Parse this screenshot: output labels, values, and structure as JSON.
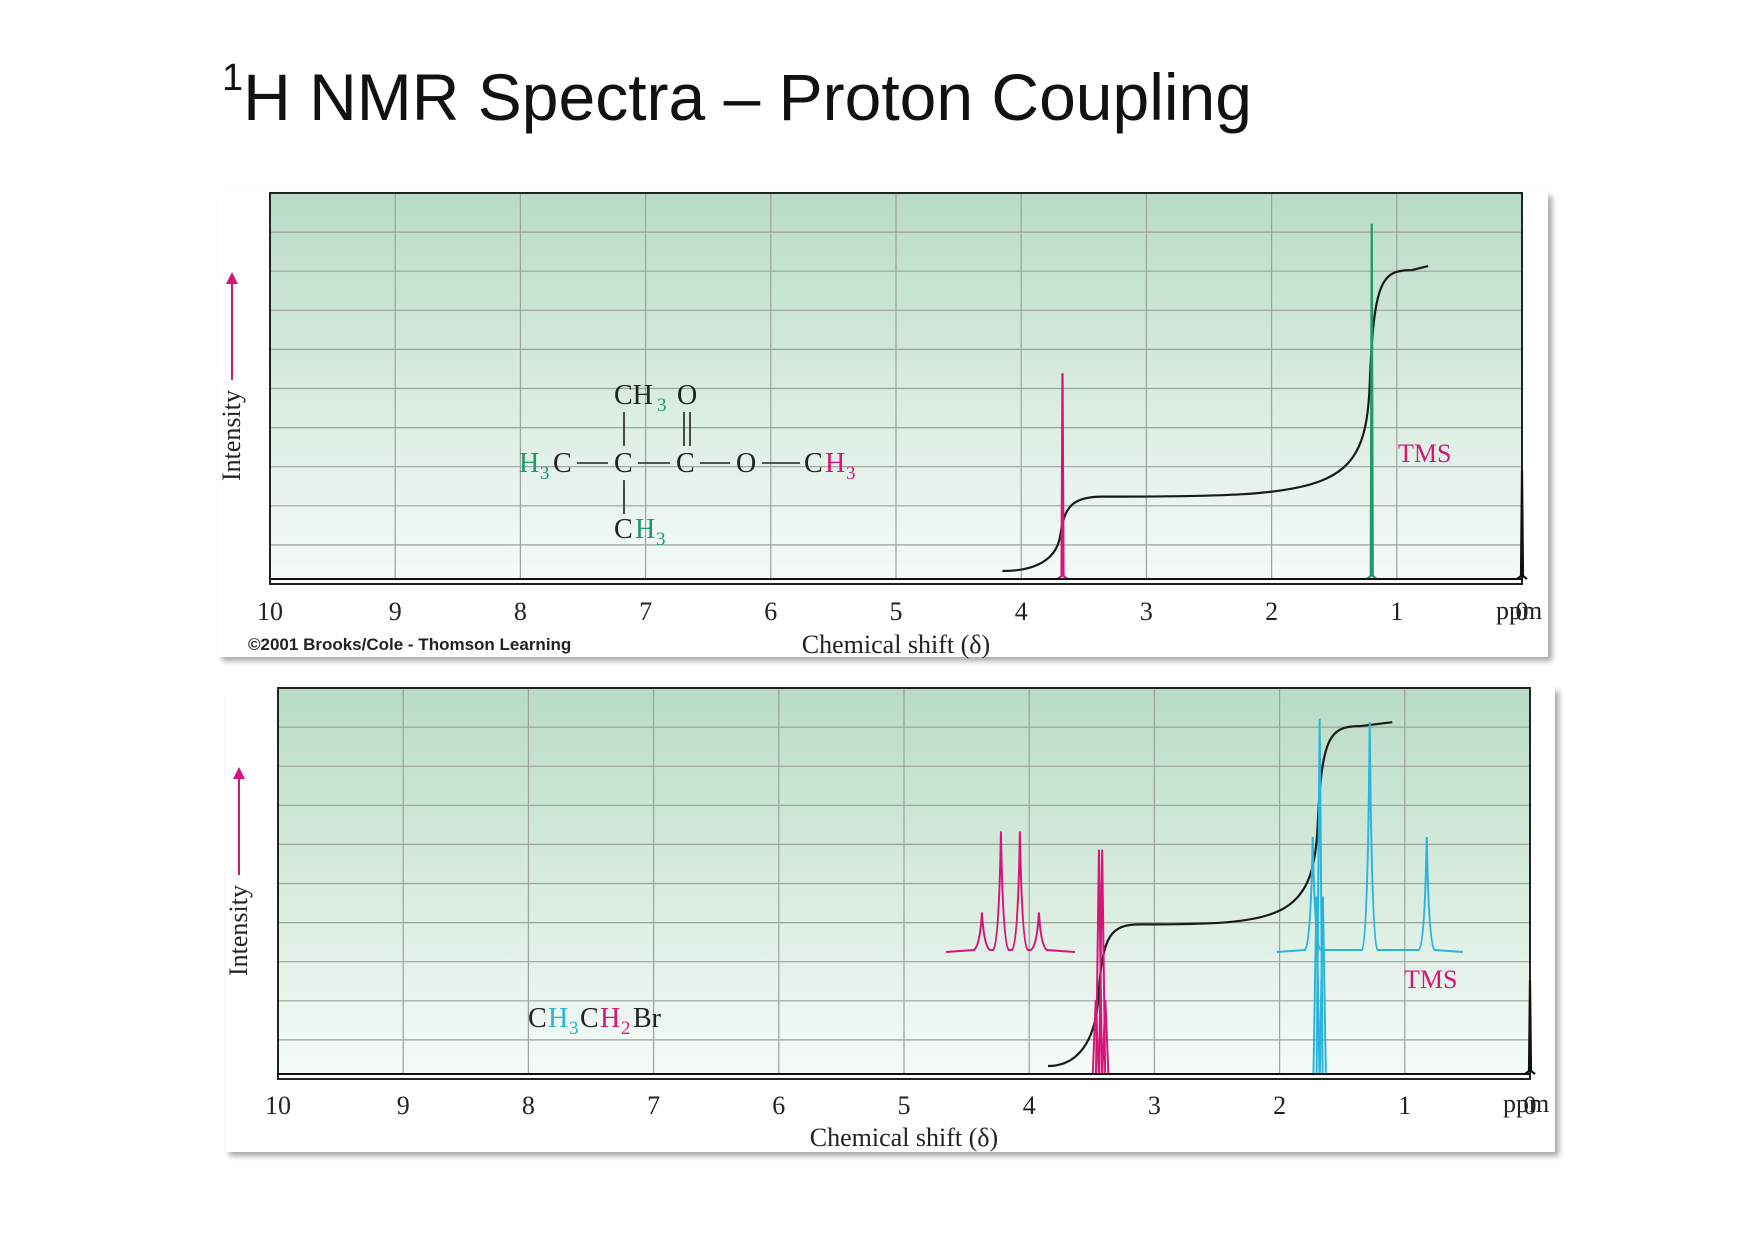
{
  "slide": {
    "title_sup": "1",
    "title_main": "H NMR Spectra – Proton Coupling"
  },
  "colors": {
    "green": "#1f9a6a",
    "magenta": "#d6157a",
    "cyan": "#2ab4dc",
    "plot_bg_top": "#b9dcc6",
    "plot_bg_bottom": "#f6fbf7",
    "grid": "#9aa29c",
    "frame": "#222222",
    "integral": "#1a1a1a"
  },
  "chart_data": [
    {
      "type": "line",
      "title": "",
      "xlabel": "Chemical shift (δ)",
      "ylabel": "Intensity",
      "x_unit": "ppm",
      "xlim": [
        10,
        0
      ],
      "x_ticks": [
        "10",
        "9",
        "8",
        "7",
        "6",
        "5",
        "4",
        "3",
        "2",
        "1",
        "0"
      ],
      "grid": true,
      "copyright": "©2001 Brooks/Cole - Thomson Learning",
      "molecule": {
        "top_ch3": "CH",
        "top_sub": "3",
        "carbonyl_o": "O",
        "left_h": "H",
        "left_sub": "3",
        "left_c": "C",
        "c1": "C",
        "c2": "C",
        "ester_o": "O",
        "right_c": "C",
        "right_h": "H",
        "right_sub": "3",
        "bottom_c": "C",
        "bottom_h": "H",
        "bottom_sub": "3"
      },
      "series": [
        {
          "name": "",
          "color": "magenta",
          "peaks": [
            {
              "ppm": 3.67,
              "height": 0.55,
              "lines": 1
            }
          ]
        },
        {
          "name": "",
          "color": "green",
          "peaks": [
            {
              "ppm": 1.2,
              "height": 0.95,
              "lines": 1
            }
          ]
        },
        {
          "name": "TMS",
          "color": "black",
          "peaks": [
            {
              "ppm": 0.0,
              "height": 0.29,
              "lines": 1
            }
          ]
        }
      ],
      "integral": {
        "x_start": 4.15,
        "x_end": 0.75,
        "steps": [
          {
            "ppm": 3.67,
            "level": 0.21
          },
          {
            "ppm": 1.2,
            "level": 0.85
          }
        ]
      },
      "annotations": [
        "TMS"
      ]
    },
    {
      "type": "line",
      "title": "",
      "xlabel": "Chemical shift (δ)",
      "ylabel": "Intensity",
      "x_unit": "ppm",
      "xlim": [
        10,
        0
      ],
      "x_ticks": [
        "10",
        "9",
        "8",
        "7",
        "6",
        "5",
        "4",
        "3",
        "2",
        "1",
        "0"
      ],
      "grid": true,
      "molecule": {
        "c1": "C",
        "h1": "H",
        "sub1": "3",
        "c2": "C",
        "h2": "H",
        "sub2": "2",
        "br": "Br"
      },
      "series": [
        {
          "name": "",
          "color": "magenta",
          "multiplet": "quartet",
          "center_ppm": 3.43,
          "lines": 4,
          "height": 0.6
        },
        {
          "name": "",
          "color": "cyan",
          "multiplet": "triplet",
          "center_ppm": 1.68,
          "lines": 3,
          "height": 0.95
        },
        {
          "name": "TMS",
          "color": "black",
          "peaks": [
            {
              "ppm": 0.0,
              "height": 0.25,
              "lines": 1
            }
          ]
        }
      ],
      "inset_expansions": [
        {
          "color": "magenta",
          "lines": 4,
          "relative_heights": [
            0.22,
            0.67,
            0.67,
            0.22
          ]
        },
        {
          "color": "cyan",
          "lines": 3,
          "relative_heights": [
            0.5,
            1.0,
            0.5
          ]
        }
      ],
      "integral": {
        "x_start": 3.85,
        "x_end": 1.1,
        "steps": [
          {
            "ppm": 3.43,
            "level": 0.4
          },
          {
            "ppm": 1.68,
            "level": 0.96
          }
        ]
      },
      "annotations": [
        "TMS"
      ]
    }
  ]
}
